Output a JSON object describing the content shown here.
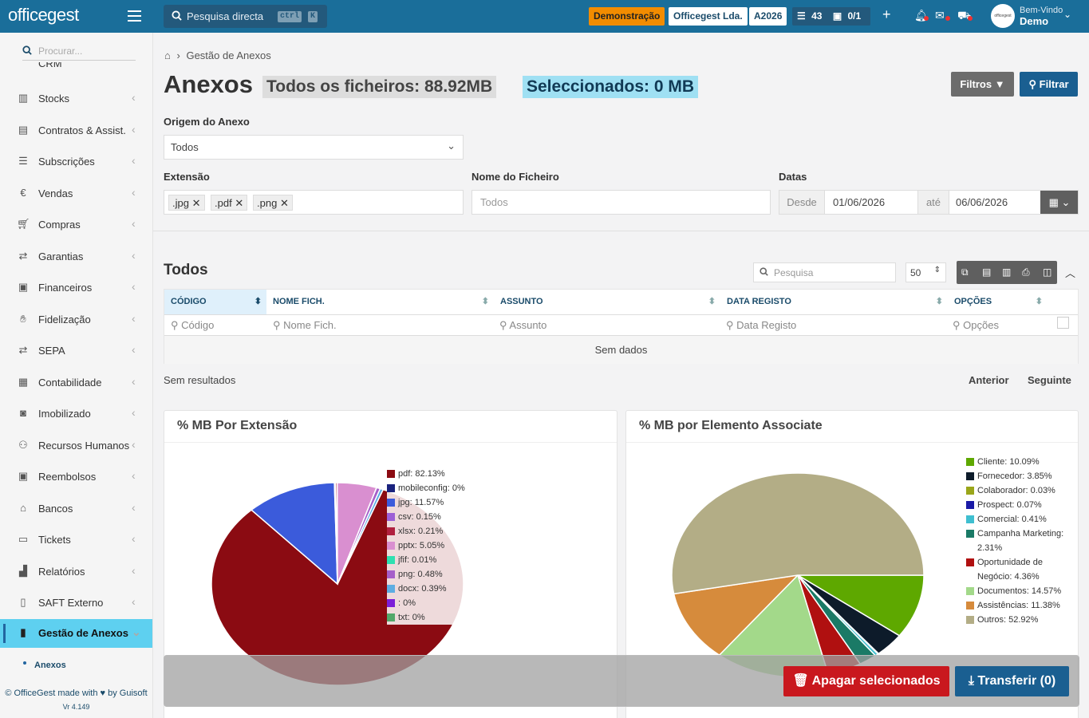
{
  "app": {
    "logo": "officegest",
    "search_placeholder": "Pesquisa directa",
    "search_kbd": [
      "ctrl",
      "K"
    ],
    "demo_badge": "Demonstração",
    "company": "Officegest Lda.",
    "year": "A2026",
    "tasks_count": "43",
    "docs_count": "0/1",
    "welcome": "Bem-Vindo",
    "user": "Demo",
    "avatar_text": "officegest"
  },
  "colors": {
    "topbar": "#1a6e9a",
    "accent": "#2265a0",
    "active": "#5ed0f0"
  },
  "sidebar": {
    "search_placeholder": "Procurar...",
    "cut_item": "CRM",
    "items": [
      {
        "label": "Stocks",
        "icon": "stock-icon"
      },
      {
        "label": "Contratos & Assist.",
        "icon": "contract-icon"
      },
      {
        "label": "Subscrições",
        "icon": "list-icon"
      },
      {
        "label": "Vendas",
        "icon": "euro-icon"
      },
      {
        "label": "Compras",
        "icon": "cart-icon"
      },
      {
        "label": "Garantias",
        "icon": "exchange-icon"
      },
      {
        "label": "Financeiros",
        "icon": "money-icon"
      },
      {
        "label": "Fidelização",
        "icon": "hand-icon"
      },
      {
        "label": "SEPA",
        "icon": "exchange-icon"
      },
      {
        "label": "Contabilidade",
        "icon": "calculator-icon"
      },
      {
        "label": "Imobilizado",
        "icon": "box-icon"
      },
      {
        "label": "Recursos Humanos",
        "icon": "people-icon"
      },
      {
        "label": "Reembolsos",
        "icon": "money-icon"
      },
      {
        "label": "Bancos",
        "icon": "bank-icon"
      },
      {
        "label": "Tickets",
        "icon": "ticket-icon"
      },
      {
        "label": "Relatórios",
        "icon": "chart-icon"
      },
      {
        "label": "SAFT Externo",
        "icon": "file-icon"
      }
    ],
    "active": "Gestão de Anexos",
    "sub": "Anexos",
    "footer": "© OfficeGest made with ♥ by Guisoft",
    "version": "Vr 4.149"
  },
  "page": {
    "breadcrumb": "Gestão de Anexos",
    "title": "Anexos",
    "all_files": "Todos os ficheiros: 88.92MB",
    "selected": "Seleccionados: 0 MB",
    "filters_btn": "Filtros",
    "filter_btn": "Filtrar",
    "origin_label": "Origem do Anexo",
    "origin_value": "Todos",
    "ext_label": "Extensão",
    "ext_tags": [
      ".jpg",
      ".pdf",
      ".png"
    ],
    "name_label": "Nome do Ficheiro",
    "name_placeholder": "Todos",
    "dates_label": "Datas",
    "from": "Desde",
    "from_value": "01/06/2026",
    "to": "até",
    "to_value": "06/06/2026"
  },
  "table": {
    "title": "Todos",
    "search_placeholder": "Pesquisa",
    "page_size": "50",
    "columns": [
      "CÓDIGO",
      "NOME FICH.",
      "ASSUNTO",
      "DATA REGISTO",
      "OPÇÕES"
    ],
    "filters": [
      "Código",
      "Nome Fich.",
      "Assunto",
      "Data Registo",
      "Opções"
    ],
    "empty": "Sem dados",
    "results": "Sem resultados",
    "prev": "Anterior",
    "next": "Seguinte"
  },
  "chart_data": [
    {
      "type": "pie",
      "title": "% MB Por Extensão",
      "labels": [
        "pdf: 82.13%",
        "mobileconfig: 0%",
        "jpg: 11.57%",
        "csv: 0.15%",
        "xlsx: 0.21%",
        "pptx: 5.05%",
        "jfif: 0.01%",
        "png: 0.48%",
        "docx: 0.39%",
        ": 0%",
        "txt: 0%"
      ],
      "values": [
        82.13,
        0,
        11.57,
        0.15,
        0.21,
        5.05,
        0.01,
        0.48,
        0.39,
        0,
        0
      ],
      "colors": [
        "#8b0b12",
        "#1a237e",
        "#3b5bdb",
        "#9c5fd6",
        "#b0203f",
        "#d98fd0",
        "#2ee0b0",
        "#a55fc9",
        "#5dade2",
        "#7b1fd8",
        "#52a86a"
      ]
    },
    {
      "type": "pie",
      "title": "% MB por Elemento Associate",
      "labels": [
        "Cliente: 10.09%",
        "Fornecedor: 3.85%",
        "Colaborador: 0.03%",
        "Prospect: 0.07%",
        "Comercial: 0.41%",
        "Campanha Marketing: 2.31%",
        "Oportunidade de Negócio: 4.36%",
        "Documentos: 14.57%",
        "Assistências: 11.38%",
        "Outros: 52.92%"
      ],
      "values": [
        10.09,
        3.85,
        0.03,
        0.07,
        0.41,
        2.31,
        4.36,
        14.57,
        11.38,
        52.92
      ],
      "colors": [
        "#5ea800",
        "#0d1b2a",
        "#9aa61a",
        "#1a1aa6",
        "#3fbfd0",
        "#1a7a66",
        "#b01010",
        "#a3d98a",
        "#d68b3c",
        "#b3ad86"
      ]
    }
  ],
  "actions": {
    "delete": "Apagar selecionados",
    "download": "Transferir (0)"
  }
}
